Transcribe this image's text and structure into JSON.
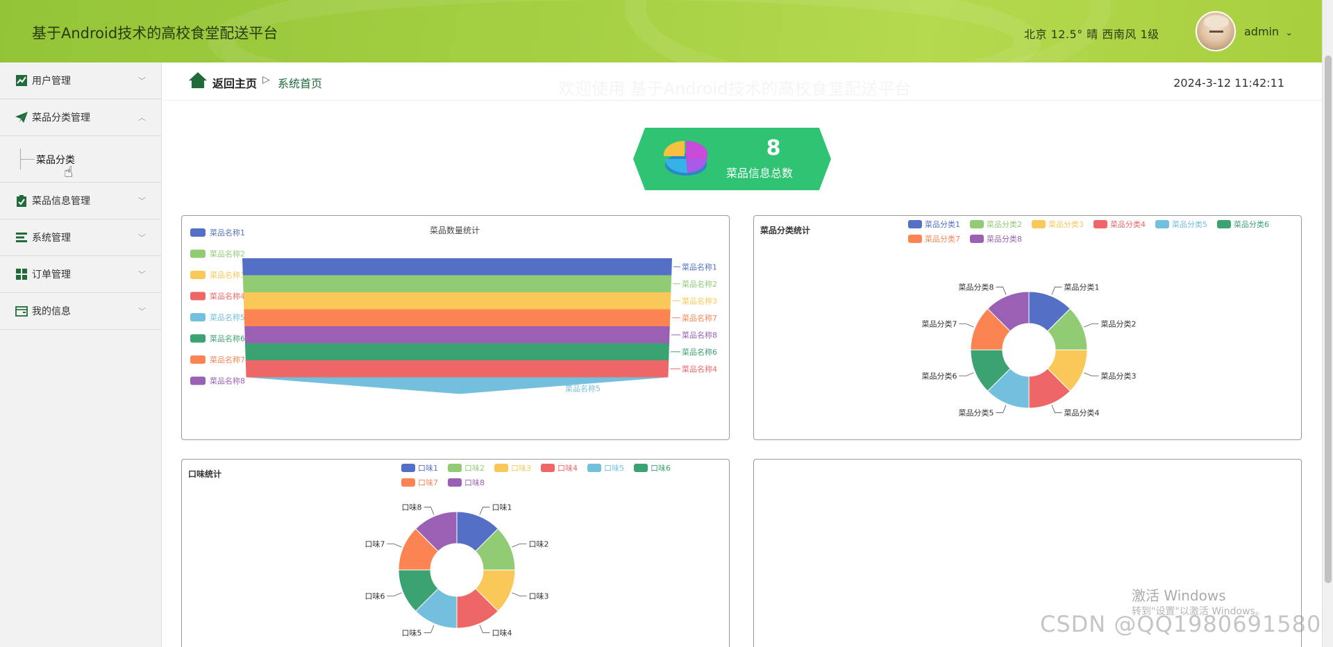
{
  "header": {
    "title": "基于Android技术的高校食堂配送平台",
    "weather": "北京  12.5°  晴  西南风  1级",
    "username": "admin",
    "user_chevron": "⌄"
  },
  "sidebar": {
    "items": [
      {
        "label": "用户管理",
        "icon": "chart-line-icon",
        "expanded": false
      },
      {
        "label": "菜品分类管理",
        "icon": "paper-plane-icon",
        "expanded": true
      },
      {
        "label": "菜品信息管理",
        "icon": "clipboard-check-icon",
        "expanded": false
      },
      {
        "label": "系统管理",
        "icon": "list-icon",
        "expanded": false
      },
      {
        "label": "订单管理",
        "icon": "grid-icon",
        "expanded": false
      },
      {
        "label": "我的信息",
        "icon": "wallet-icon",
        "expanded": false
      }
    ],
    "submenu_label": "菜品分类"
  },
  "breadcrumb": {
    "home": "返回主页",
    "sep": "▷",
    "current": "系统首页"
  },
  "ghost_title": "欢迎使用 基于Android技术的高校食堂配送平台",
  "datetime": "2024-3-12 11:42:11",
  "stat": {
    "value": "8",
    "label": "菜品信息总数"
  },
  "colors": [
    "#5470c6",
    "#91cc75",
    "#fac858",
    "#ee6666",
    "#73c0de",
    "#3ba272",
    "#fc8452",
    "#9a60b4"
  ],
  "charts": {
    "funnel": {
      "title": "菜品数量统计",
      "legend": [
        "菜品名称1",
        "菜品名称2",
        "菜品名称3",
        "菜品名称4",
        "菜品名称5",
        "菜品名称6",
        "菜品名称7",
        "菜品名称8"
      ],
      "order_labels": [
        "菜品名称1",
        "菜品名称2",
        "菜品名称3",
        "菜品名称7",
        "菜品名称8",
        "菜品名称6",
        "菜品名称4",
        "菜品名称5"
      ]
    },
    "category_pie": {
      "title": "菜品分类统计",
      "legend": [
        "菜品分类1",
        "菜品分类2",
        "菜品分类3",
        "菜品分类4",
        "菜品分类5",
        "菜品分类6",
        "菜品分类7",
        "菜品分类8"
      ]
    },
    "taste_pie": {
      "title": "口味统计",
      "legend": [
        "口味1",
        "口味2",
        "口味3",
        "口味4",
        "口味5",
        "口味6",
        "口味7",
        "口味8"
      ]
    }
  },
  "watermarks": {
    "windows_1": "激活 Windows",
    "windows_2": "转到\"设置\"以激活 Windows。",
    "csdn": "CSDN @QQ1980691580"
  }
}
